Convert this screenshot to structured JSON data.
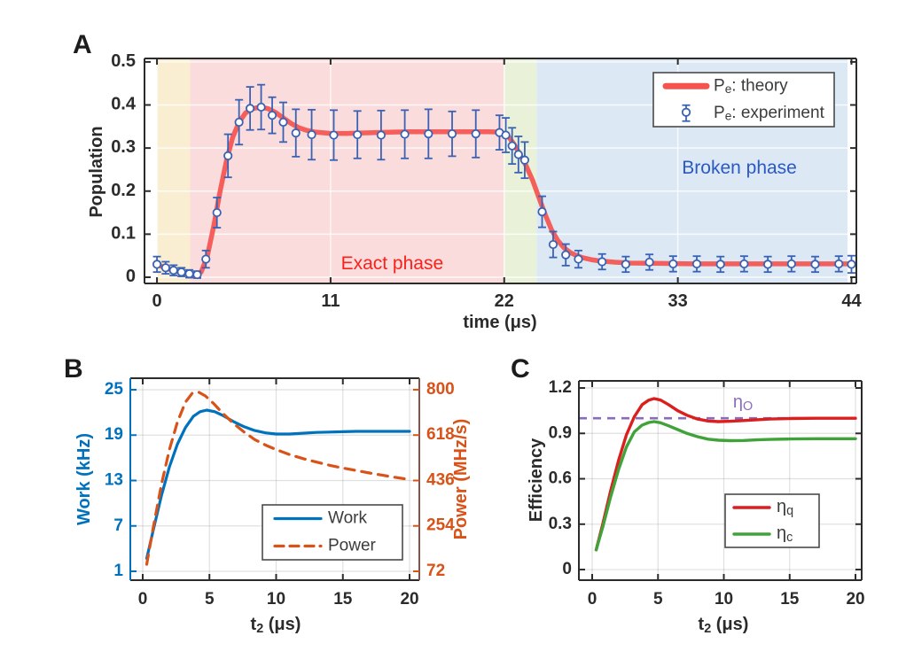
{
  "panel_labels": {
    "a": "A",
    "b": "B",
    "c": "C"
  },
  "chart_data": [
    {
      "id": "A",
      "type": "line",
      "title": "",
      "xlabel_parts": [
        {
          "t": "time (μs)"
        }
      ],
      "ylabel": "Population",
      "xticks": [
        0,
        11,
        22,
        33,
        44
      ],
      "yticks": [
        0,
        0.1,
        0.2,
        0.3,
        0.4,
        0.5
      ],
      "xlim": [
        -0.79,
        44.31
      ],
      "ylim": [
        -0.0144,
        0.508
      ],
      "grid": true,
      "regions": [
        {
          "name": "ramp-band",
          "from": 0,
          "to": 2.1,
          "color": "#faeed2"
        },
        {
          "name": "exact-band",
          "from": 2.1,
          "to": 22.0,
          "color": "#fadcdc"
        },
        {
          "name": "quench-band",
          "from": 22.0,
          "to": 24.05,
          "color": "#e9f2d9"
        },
        {
          "name": "broken-band",
          "from": 24.05,
          "to": 43.75,
          "color": "#dce9f4"
        }
      ],
      "series": [
        {
          "name_parts": [
            {
              "t": "P"
            },
            {
              "t": "e",
              "sub": true
            },
            {
              "t": ": theory"
            }
          ],
          "type": "line",
          "color": "#f4534e",
          "width": 5.5,
          "opacity": 0.92,
          "x": [
            0,
            0.5,
            1,
            1.5,
            2,
            2.4,
            2.8,
            3.2,
            3.6,
            4,
            4.4,
            4.8,
            5.2,
            5.6,
            6,
            6.5,
            7,
            7.5,
            8,
            8.5,
            9,
            9.5,
            10,
            11,
            12,
            13,
            14,
            15,
            16,
            17,
            18,
            19,
            20,
            21,
            21.8,
            22.2,
            22.6,
            23,
            23.4,
            23.8,
            24.2,
            24.6,
            25,
            25.4,
            25.8,
            26.2,
            26.6,
            27,
            27.5,
            28,
            29,
            30,
            32,
            34,
            36,
            38,
            40,
            42,
            44
          ],
          "y": [
            0.03,
            0.022,
            0.016,
            0.011,
            0.007,
            0.005,
            0.012,
            0.05,
            0.12,
            0.2,
            0.27,
            0.325,
            0.36,
            0.381,
            0.391,
            0.395,
            0.392,
            0.383,
            0.37,
            0.357,
            0.347,
            0.341,
            0.337,
            0.334,
            0.334,
            0.335,
            0.336,
            0.337,
            0.338,
            0.338,
            0.338,
            0.338,
            0.338,
            0.338,
            0.337,
            0.33,
            0.31,
            0.285,
            0.258,
            0.225,
            0.185,
            0.145,
            0.11,
            0.085,
            0.068,
            0.057,
            0.05,
            0.045,
            0.041,
            0.038,
            0.035,
            0.033,
            0.032,
            0.031,
            0.031,
            0.031,
            0.031,
            0.031,
            0.031
          ]
        },
        {
          "name_parts": [
            {
              "t": "P"
            },
            {
              "t": "e",
              "sub": true
            },
            {
              "t": ": experiment"
            }
          ],
          "type": "errorbar",
          "color": "#3a62b4",
          "x": [
            0,
            0.55,
            1.05,
            1.55,
            2.05,
            2.55,
            3.1,
            3.8,
            4.5,
            5.2,
            5.9,
            6.6,
            7.3,
            8,
            8.8,
            9.8,
            11.2,
            12.7,
            14.2,
            15.7,
            17.2,
            18.7,
            20.2,
            21.7,
            22.1,
            22.5,
            22.9,
            23.3,
            24.4,
            25.1,
            25.9,
            26.7,
            28.2,
            29.7,
            31.2,
            32.7,
            34.2,
            35.7,
            37.2,
            38.7,
            40.2,
            41.7,
            43.2,
            44
          ],
          "y": [
            0.03,
            0.022,
            0.016,
            0.012,
            0.008,
            0.006,
            0.042,
            0.15,
            0.282,
            0.36,
            0.392,
            0.395,
            0.376,
            0.36,
            0.335,
            0.331,
            0.33,
            0.331,
            0.33,
            0.332,
            0.333,
            0.333,
            0.333,
            0.336,
            0.33,
            0.305,
            0.285,
            0.272,
            0.152,
            0.076,
            0.052,
            0.042,
            0.036,
            0.03,
            0.035,
            0.031,
            0.031,
            0.03,
            0.031,
            0.03,
            0.031,
            0.03,
            0.031,
            0.03
          ],
          "yerr": [
            0.018,
            0.014,
            0.012,
            0.01,
            0.009,
            0.008,
            0.02,
            0.035,
            0.05,
            0.052,
            0.05,
            0.052,
            0.042,
            0.046,
            0.055,
            0.058,
            0.058,
            0.055,
            0.057,
            0.056,
            0.057,
            0.052,
            0.055,
            0.04,
            0.04,
            0.042,
            0.042,
            0.042,
            0.036,
            0.03,
            0.025,
            0.02,
            0.018,
            0.018,
            0.018,
            0.018,
            0.018,
            0.018,
            0.018,
            0.018,
            0.018,
            0.018,
            0.018,
            0.02
          ]
        }
      ],
      "annotations": [
        {
          "parts": [
            {
              "t": "Exact phase"
            }
          ],
          "color": "#fb201a",
          "x": 14.9,
          "y": 0.031,
          "size": 21
        },
        {
          "parts": [
            {
              "t": "Broken phase"
            }
          ],
          "color": "#2b59c4",
          "x": 36.9,
          "y": 0.253,
          "size": 21
        }
      ],
      "legend": {
        "items": [
          {
            "series": 0,
            "swatch": "line",
            "swatch_width": 7
          },
          {
            "series": 1,
            "swatch": "errorbar"
          }
        ]
      }
    },
    {
      "id": "B",
      "type": "line",
      "title": "",
      "xlabel_parts": [
        {
          "t": "t"
        },
        {
          "t": "2",
          "sub": true
        },
        {
          "t": " (μs)"
        }
      ],
      "ylabel_left": "Work (kHz)",
      "ylabel_right": "Power (MHz/s)",
      "xticks": [
        0,
        5,
        10,
        15,
        20
      ],
      "yticks": [
        1,
        7,
        13,
        19,
        25
      ],
      "yticks_right": [
        72,
        254,
        436,
        618,
        800
      ],
      "xlim": [
        -0.93,
        20.73
      ],
      "ylim": [
        -0.17,
        26.52
      ],
      "ylim_right": [
        36.5,
        846
      ],
      "grid": true,
      "axis_color_left": "#0072bd",
      "axis_color_right_spine": "#7d564f",
      "axis_color_right": "#d95319",
      "series": [
        {
          "name_parts": [
            {
              "t": "Work"
            }
          ],
          "type": "line",
          "axis": "left",
          "color": "#0072bd",
          "width": 3.2,
          "x": [
            0.3,
            0.8,
            1.4,
            2,
            2.6,
            3.2,
            3.8,
            4.3,
            4.8,
            5.4,
            6,
            6.8,
            7.6,
            8.4,
            9.2,
            10,
            11,
            12,
            13,
            14,
            15,
            16,
            17,
            18,
            19,
            20
          ],
          "y": [
            2.7,
            6.5,
            11,
            14.8,
            17.8,
            20,
            21.5,
            22.1,
            22.3,
            22.1,
            21.6,
            20.8,
            20.1,
            19.6,
            19.3,
            19.15,
            19.15,
            19.25,
            19.35,
            19.4,
            19.45,
            19.5,
            19.5,
            19.5,
            19.5,
            19.5
          ]
        },
        {
          "name_parts": [
            {
              "t": "Power"
            }
          ],
          "type": "line",
          "axis": "right",
          "color": "#d95319",
          "width": 3.2,
          "dash": "11 8",
          "x": [
            0.3,
            0.8,
            1.4,
            2,
            2.6,
            3.2,
            3.7,
            4.2,
            4.7,
            5.3,
            6,
            6.8,
            7.6,
            8.4,
            9.2,
            10,
            11,
            12,
            13,
            14,
            15,
            16,
            17,
            18,
            19,
            20
          ],
          "y": [
            100,
            250,
            420,
            560,
            670,
            750,
            785,
            790,
            775,
            745,
            705,
            665,
            630,
            600,
            578,
            560,
            540,
            524,
            510,
            497,
            486,
            476,
            466,
            457,
            448,
            440
          ]
        }
      ],
      "annotations": [],
      "legend": {
        "items": [
          {
            "series": 0,
            "swatch": "line",
            "swatch_width": 3.2
          },
          {
            "series": 1,
            "swatch": "dashed",
            "swatch_width": 3.2
          }
        ]
      }
    },
    {
      "id": "C",
      "type": "line",
      "title": "",
      "xlabel_parts": [
        {
          "t": "t"
        },
        {
          "t": "2",
          "sub": true
        },
        {
          "t": " (μs)"
        }
      ],
      "ylabel": "Efficiency",
      "xticks": [
        0,
        5,
        10,
        15,
        20
      ],
      "yticks": [
        0,
        0.3,
        0.6,
        0.9,
        1.2
      ],
      "xlim": [
        -1.01,
        20.47
      ],
      "ylim": [
        -0.07,
        1.247
      ],
      "grid": true,
      "hlines": [
        {
          "name_parts": [
            {
              "t": "η"
            },
            {
              "t": "O",
              "sub": true
            }
          ],
          "y": 1.0,
          "color": "#8a6bbe",
          "dash": "9 7",
          "width": 2.6
        }
      ],
      "series": [
        {
          "name_parts": [
            {
              "t": "η"
            },
            {
              "t": "q",
              "sub": true
            }
          ],
          "type": "line",
          "color": "#db1f1f",
          "width": 3.4,
          "x": [
            0.3,
            0.8,
            1.4,
            2,
            2.6,
            3.2,
            3.8,
            4.3,
            4.7,
            5.2,
            5.8,
            6.5,
            7.2,
            8,
            8.8,
            9.6,
            10.5,
            11.5,
            12.5,
            13.5,
            15,
            17,
            20
          ],
          "y": [
            0.13,
            0.3,
            0.52,
            0.72,
            0.89,
            1.01,
            1.09,
            1.12,
            1.13,
            1.12,
            1.09,
            1.05,
            1.02,
            0.995,
            0.982,
            0.978,
            0.98,
            0.985,
            0.99,
            0.995,
            0.998,
            1,
            1
          ]
        },
        {
          "name_parts": [
            {
              "t": "η"
            },
            {
              "t": "c",
              "sub": true
            }
          ],
          "type": "line",
          "color": "#40a339",
          "width": 3.4,
          "x": [
            0.3,
            0.8,
            1.4,
            2,
            2.6,
            3.2,
            3.8,
            4.3,
            4.7,
            5.2,
            5.8,
            6.5,
            7.2,
            8,
            8.8,
            9.6,
            10.5,
            11.5,
            12.5,
            13.5,
            15,
            17,
            20
          ],
          "y": [
            0.13,
            0.28,
            0.48,
            0.66,
            0.81,
            0.91,
            0.955,
            0.972,
            0.978,
            0.97,
            0.95,
            0.925,
            0.9,
            0.878,
            0.862,
            0.855,
            0.852,
            0.853,
            0.857,
            0.86,
            0.863,
            0.865,
            0.865
          ]
        }
      ],
      "annotations": [
        {
          "parts": [
            {
              "t": "η"
            },
            {
              "t": "O",
              "sub": true
            }
          ],
          "color": "#8a6bbe",
          "x": 11.45,
          "y": 1.1,
          "size": 20
        }
      ],
      "legend": {
        "items": [
          {
            "series": 0,
            "swatch": "line",
            "swatch_width": 3.4
          },
          {
            "series": 1,
            "swatch": "line",
            "swatch_width": 3.4
          }
        ]
      }
    }
  ]
}
